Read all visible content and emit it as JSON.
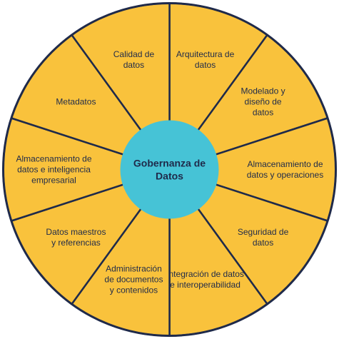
{
  "center": {
    "lines": [
      "Gobernanza de",
      "Datos"
    ],
    "color": "#46c3d6"
  },
  "segment_color": "#f9c23c",
  "line_color": "#1f2a4a",
  "segments": [
    {
      "lines": [
        "Arquitectura de",
        "datos"
      ]
    },
    {
      "lines": [
        "Modelado y",
        "diseño de",
        "datos"
      ]
    },
    {
      "lines": [
        "Almacenamiento de",
        "datos y operaciones"
      ]
    },
    {
      "lines": [
        "Seguridad de",
        "datos"
      ]
    },
    {
      "lines": [
        "Integración de datos",
        "e interoperabilidad"
      ]
    },
    {
      "lines": [
        "Administración",
        "de documentos",
        "y contenidos"
      ]
    },
    {
      "lines": [
        "Datos maestros",
        "y referencias"
      ]
    },
    {
      "lines": [
        "Almacenamiento de",
        "datos e inteligencia",
        "empresarial"
      ]
    },
    {
      "lines": [
        "Metadatos"
      ]
    },
    {
      "lines": [
        "Calidad de",
        "datos"
      ]
    }
  ]
}
